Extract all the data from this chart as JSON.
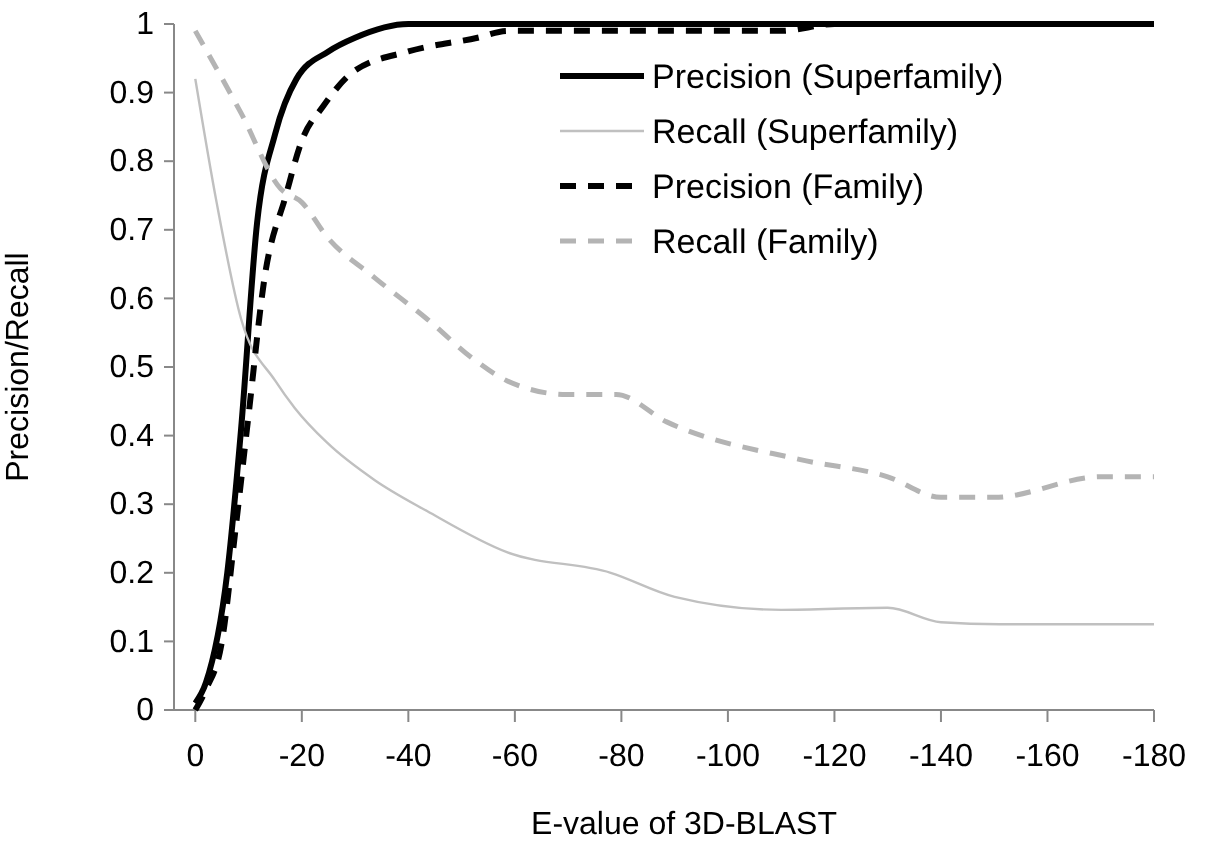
{
  "chart_data": {
    "type": "line",
    "xlabel": "E-value of 3D-BLAST",
    "ylabel": "Precision/Recall",
    "xlim": [
      4,
      -180
    ],
    "xticks": [
      0,
      -20,
      -40,
      -60,
      -80,
      -100,
      -120,
      -140,
      -160,
      -180
    ],
    "ylim": [
      0,
      1
    ],
    "yticks": [
      0,
      0.1,
      0.2,
      0.3,
      0.4,
      0.5,
      0.6,
      0.7,
      0.8,
      0.9,
      1
    ],
    "grid": false,
    "legend": "top right",
    "marker": "none",
    "series": [
      {
        "name": "Precision (Superfamily)",
        "color": "#000000",
        "line_style": "solid",
        "x": [
          0,
          -2,
          -6,
          -8.6,
          -11.6,
          -15,
          -19,
          -25,
          -30,
          -40,
          -60,
          -100,
          -140,
          -180
        ],
        "values": [
          0.01,
          0.04,
          0.2,
          0.41,
          0.71,
          0.84,
          0.92,
          0.96,
          0.98,
          1.0,
          1.0,
          1.0,
          1.0,
          1.0
        ]
      },
      {
        "name": "Recall (Superfamily)",
        "color": "#c0c0c0",
        "line_style": "solid",
        "x": [
          0,
          -4,
          -8.6,
          -15,
          -18.7,
          -24.7,
          -33.7,
          -43.5,
          -58.5,
          -78,
          -90,
          -110,
          -130,
          -140,
          -151,
          -180
        ],
        "values": [
          0.92,
          0.74,
          0.57,
          0.48,
          0.44,
          0.39,
          0.335,
          0.29,
          0.23,
          0.2,
          0.165,
          0.146,
          0.149,
          0.128,
          0.125,
          0.125
        ]
      },
      {
        "name": "Precision (Family)",
        "color": "#000000",
        "line_style": "dashed",
        "x": [
          0,
          -2,
          -5,
          -7.5,
          -10,
          -13,
          -17,
          -20,
          -24,
          -29.6,
          -40,
          -53,
          -58.6,
          -80,
          -110,
          -120,
          -180
        ],
        "values": [
          0.0,
          0.03,
          0.1,
          0.26,
          0.43,
          0.63,
          0.75,
          0.83,
          0.88,
          0.93,
          0.96,
          0.98,
          0.99,
          0.99,
          0.99,
          1.0,
          1.0
        ]
      },
      {
        "name": "Recall (Family)",
        "color": "#b4b4b4",
        "line_style": "dashed",
        "x": [
          0,
          -8.6,
          -16,
          -20,
          -24.7,
          -33.7,
          -43.5,
          -52.5,
          -58.5,
          -69.7,
          -79,
          -88.5,
          -113.6,
          -130,
          -140,
          -150,
          -170,
          -180
        ],
        "values": [
          0.99,
          0.87,
          0.76,
          0.74,
          0.69,
          0.63,
          0.57,
          0.51,
          0.48,
          0.46,
          0.46,
          0.42,
          0.365,
          0.34,
          0.31,
          0.31,
          0.34,
          0.34
        ]
      }
    ]
  }
}
